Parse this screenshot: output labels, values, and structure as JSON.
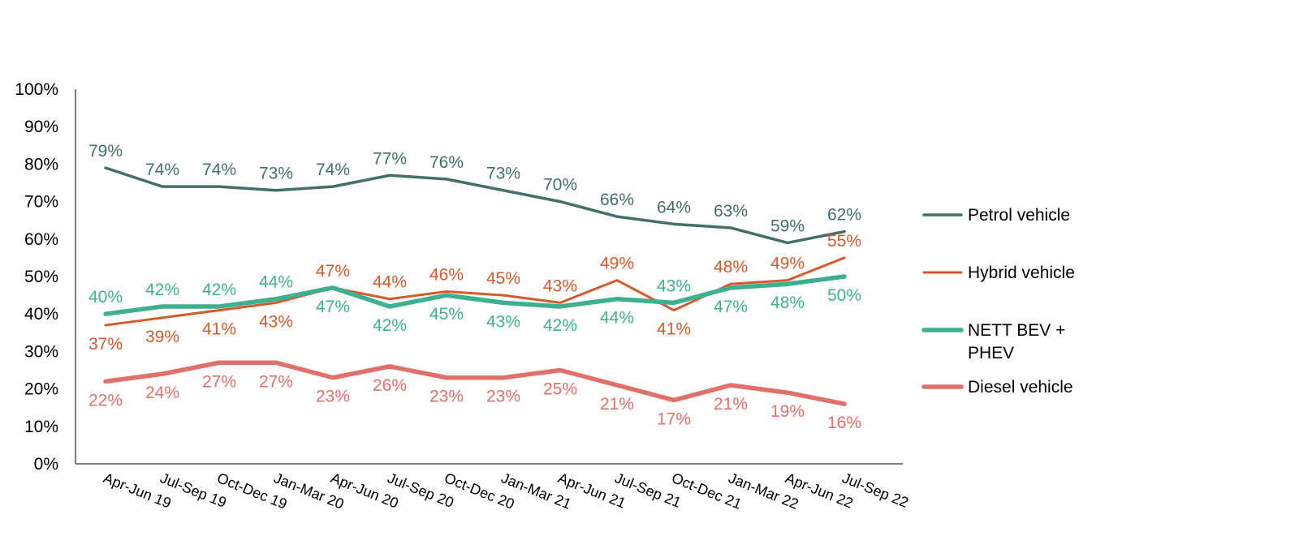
{
  "chart_data": {
    "type": "line",
    "title": "",
    "xlabel": "",
    "ylabel": "",
    "ylim": [
      0,
      100
    ],
    "y_ticks": [
      "0%",
      "10%",
      "20%",
      "30%",
      "40%",
      "50%",
      "60%",
      "70%",
      "80%",
      "90%",
      "100%"
    ],
    "y_tick_values": [
      0,
      10,
      20,
      30,
      40,
      50,
      60,
      70,
      80,
      90,
      100
    ],
    "grid": false,
    "legend_position": "right",
    "categories": [
      "Apr-Jun 19",
      "Jul-Sep 19",
      "Oct-Dec 19",
      "Jan-Mar 20",
      "Apr-Jun 20",
      "Jul-Sep 20",
      "Oct-Dec 20",
      "Jan-Mar 21",
      "Apr-Jun 21",
      "Jul-Sep 21",
      "Oct-Dec 21",
      "Jan-Mar 22",
      "Apr-Jun 22",
      "Jul-Sep 22"
    ],
    "series": [
      {
        "name": "Petrol vehicle",
        "color": "#456e6a",
        "label_position": "above",
        "values": [
          79,
          74,
          74,
          73,
          74,
          77,
          76,
          73,
          70,
          66,
          64,
          63,
          59,
          62
        ],
        "labels": [
          "79%",
          "74%",
          "74%",
          "73%",
          "74%",
          "77%",
          "76%",
          "73%",
          "70%",
          "66%",
          "64%",
          "63%",
          "59%",
          "62%"
        ]
      },
      {
        "name": "Hybrid vehicle",
        "color": "#d45a2b",
        "label_position": "mixed",
        "values": [
          37,
          39,
          41,
          43,
          47,
          44,
          46,
          45,
          43,
          49,
          41,
          48,
          49,
          55
        ],
        "labels": [
          "37%",
          "39%",
          "41%",
          "43%",
          "47%",
          "44%",
          "46%",
          "45%",
          "43%",
          "49%",
          "41%",
          "48%",
          "49%",
          "55%"
        ]
      },
      {
        "name": "NETT BEV + PHEV",
        "color": "#3fb08f",
        "label_position": "mixed",
        "values": [
          40,
          42,
          42,
          44,
          47,
          42,
          45,
          43,
          42,
          44,
          43,
          47,
          48,
          50
        ],
        "labels": [
          "40%",
          "42%",
          "42%",
          "44%",
          "47%",
          "42%",
          "45%",
          "43%",
          "42%",
          "44%",
          "43%",
          "47%",
          "48%",
          "50%"
        ]
      },
      {
        "name": "Diesel vehicle",
        "color": "#e2706a",
        "label_position": "below",
        "values": [
          22,
          24,
          27,
          27,
          23,
          26,
          23,
          23,
          25,
          21,
          17,
          21,
          19,
          16
        ],
        "labels": [
          "22%",
          "24%",
          "27%",
          "27%",
          "23%",
          "26%",
          "23%",
          "23%",
          "25%",
          "21%",
          "17%",
          "21%",
          "19%",
          "16%"
        ]
      }
    ]
  }
}
